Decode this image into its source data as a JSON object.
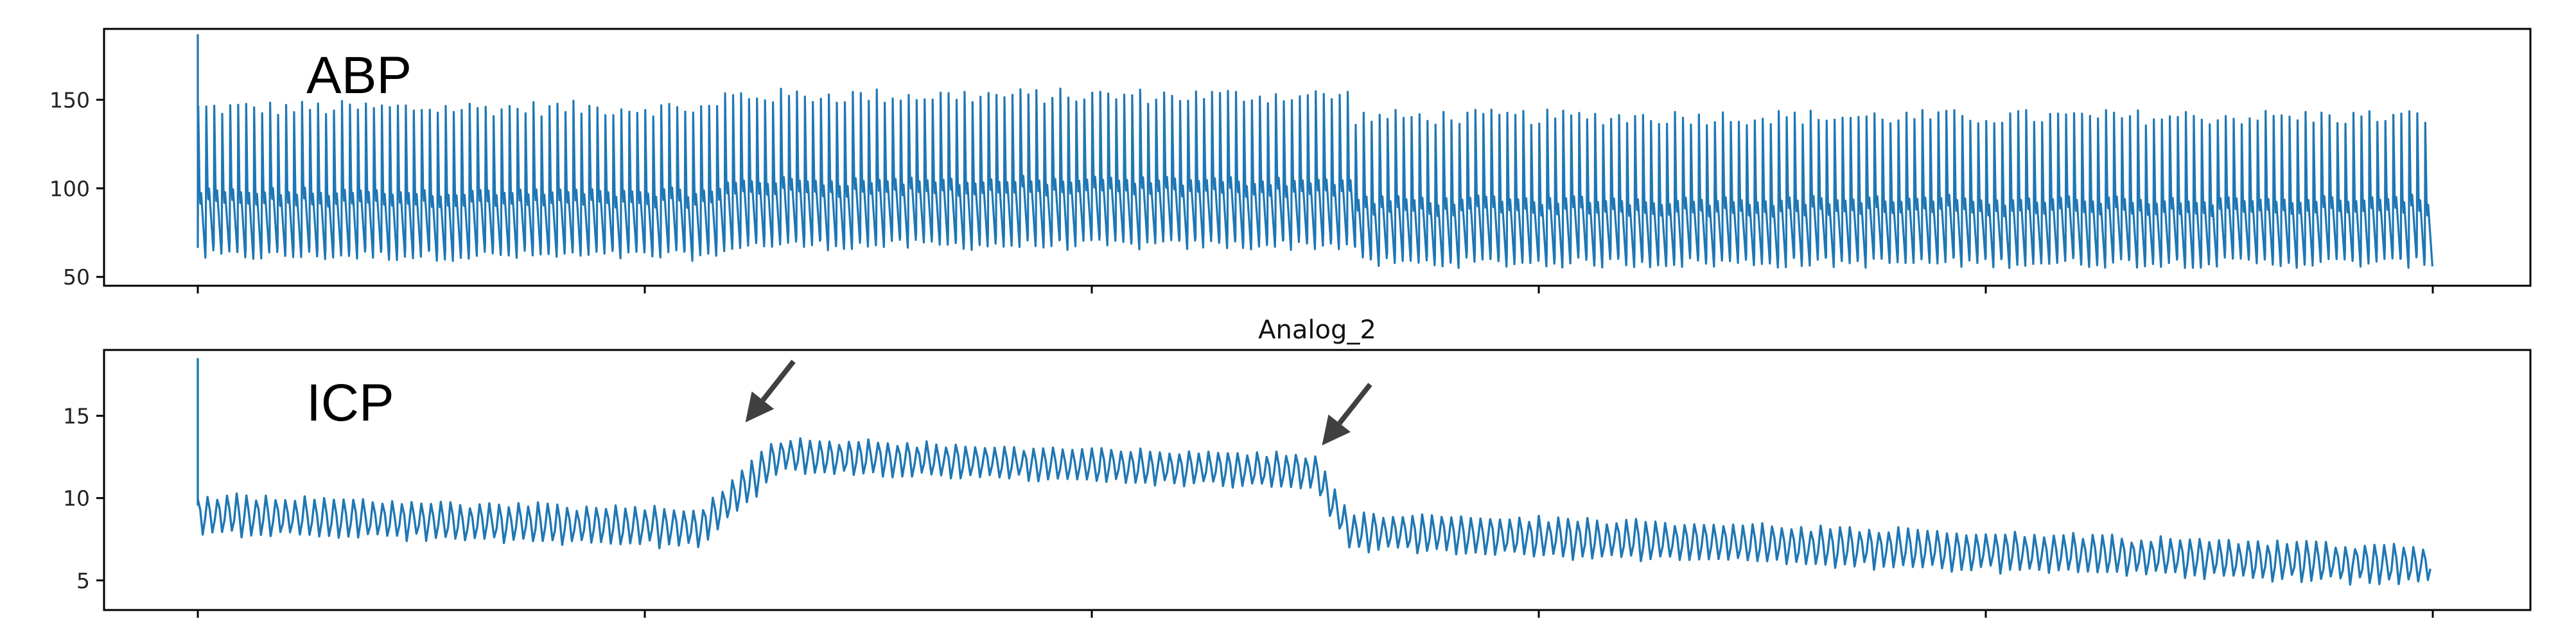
{
  "chart_data": [
    {
      "type": "line",
      "title": "",
      "panel_label": "ABP",
      "xlabel": "",
      "ylabel": "",
      "yticks": [
        50,
        100,
        150
      ],
      "ylim": [
        45,
        190
      ],
      "xlim": [
        0,
        100
      ],
      "xticks": [
        0,
        20,
        40,
        60,
        80,
        100
      ],
      "grid": false,
      "color": "#1f77b4",
      "series": [
        {
          "waveform": "pulsatile",
          "segments": [
            {
              "x": [
                0,
                23.5
              ],
              "systolic": 145,
              "diastolic": 62,
              "mean_level": 80
            },
            {
              "x": [
                23.5,
                51.5
              ],
              "systolic": 152,
              "diastolic": 68,
              "mean_level": 87
            },
            {
              "x": [
                51.5,
                100
              ],
              "systolic": 140,
              "diastolic": 58,
              "mean_level": 76
            }
          ],
          "initial_spike": 187,
          "beats": 280
        }
      ]
    },
    {
      "type": "line",
      "title": "Analog_2",
      "panel_label": "ICP",
      "xlabel": "",
      "ylabel": "",
      "yticks": [
        5,
        10,
        15
      ],
      "ylim": [
        3.2,
        19
      ],
      "xlim": [
        0,
        100
      ],
      "xticks": [
        0,
        20,
        40,
        60,
        80,
        100
      ],
      "grid": false,
      "color": "#1f77b4",
      "series": [
        {
          "waveform": "oscillating",
          "segments": [
            {
              "x": [
                0,
                22.5
              ],
              "start": 9.0,
              "end": 8.2,
              "amplitude": 1.5
            },
            {
              "x": [
                22.5,
                26
              ],
              "start": 8.2,
              "end": 12.6,
              "amplitude": 1.5
            },
            {
              "x": [
                26,
                50
              ],
              "start": 12.6,
              "end": 11.6,
              "amplitude": 1.3
            },
            {
              "x": [
                50,
                51.5
              ],
              "start": 11.6,
              "end": 8.0,
              "amplitude": 1.4
            },
            {
              "x": [
                51.5,
                100
              ],
              "start": 8.0,
              "end": 5.9,
              "amplitude": 1.5
            }
          ],
          "initial_spike": 18.5,
          "cycles": 230
        }
      ],
      "annotations": [
        {
          "type": "arrow",
          "x": 24.5,
          "y": 14.6,
          "direction": "down-left",
          "icon": "arrow-icon"
        },
        {
          "type": "arrow",
          "x": 50.3,
          "y": 13.2,
          "direction": "down-left",
          "icon": "arrow-icon"
        }
      ]
    }
  ]
}
